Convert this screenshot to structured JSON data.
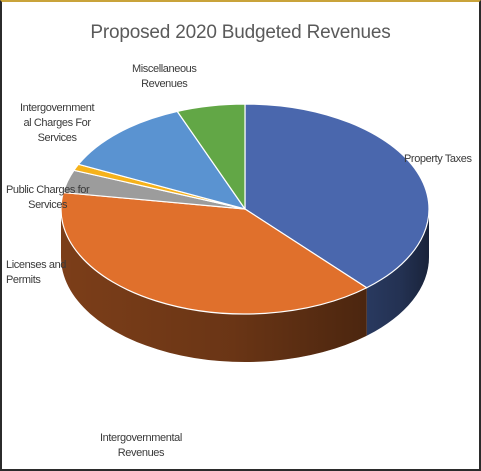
{
  "chart_data": {
    "type": "pie",
    "style": "3d",
    "title": "Proposed 2020 Budgeted Revenues",
    "slices": [
      {
        "label": "Property Taxes",
        "value": 38.5,
        "color": "#4a67ad"
      },
      {
        "label": "Intergovernmental Revenues",
        "value": 39.0,
        "color": "#e0702c"
      },
      {
        "label": "Licenses and Permits",
        "value": 3.5,
        "color": "#9c9c9c"
      },
      {
        "label": "Public Charges for Services",
        "value": 1.0,
        "color": "#f5b21b"
      },
      {
        "label": "Intergovernmental Charges For Services",
        "value": 12.0,
        "color": "#5a93d1"
      },
      {
        "label": "Miscellaneous Revenues",
        "value": 6.0,
        "color": "#62a746"
      }
    ]
  },
  "labels": {
    "property_taxes": "Property Taxes",
    "intergovernmental_revenues": "Intergovernmental\nRevenues",
    "licenses_permits": "Licenses and\nPermits",
    "public_charges": "Public Charges for\nServices",
    "intergov_charges": "Intergovernment\nal Charges For\nServices",
    "miscellaneous": "Miscellaneous\nRevenues"
  }
}
